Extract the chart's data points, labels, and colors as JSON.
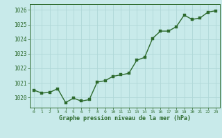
{
  "x": [
    0,
    1,
    2,
    3,
    4,
    5,
    6,
    7,
    8,
    9,
    10,
    11,
    12,
    13,
    14,
    15,
    16,
    17,
    18,
    19,
    20,
    21,
    22,
    23
  ],
  "y": [
    1020.5,
    1020.3,
    1020.35,
    1020.6,
    1019.65,
    1019.95,
    1019.75,
    1019.85,
    1021.05,
    1021.15,
    1021.45,
    1021.55,
    1021.65,
    1022.55,
    1022.75,
    1024.05,
    1024.55,
    1024.55,
    1024.85,
    1025.65,
    1025.35,
    1025.45,
    1025.85,
    1025.95
  ],
  "line_color": "#2d6a2d",
  "marker_color": "#2d6a2d",
  "bg_color": "#c8eaea",
  "grid_color": "#b0d8d8",
  "axis_label_color": "#2d6a2d",
  "tick_color": "#2d6a2d",
  "xlabel": "Graphe pression niveau de la mer (hPa)",
  "ylim": [
    1019.3,
    1026.4
  ],
  "yticks": [
    1020,
    1021,
    1022,
    1023,
    1024,
    1025,
    1026
  ],
  "xticks": [
    0,
    1,
    2,
    3,
    4,
    5,
    6,
    7,
    8,
    9,
    10,
    11,
    12,
    13,
    14,
    15,
    16,
    17,
    18,
    19,
    20,
    21,
    22,
    23
  ],
  "marker_size": 2.5,
  "line_width": 1.0
}
